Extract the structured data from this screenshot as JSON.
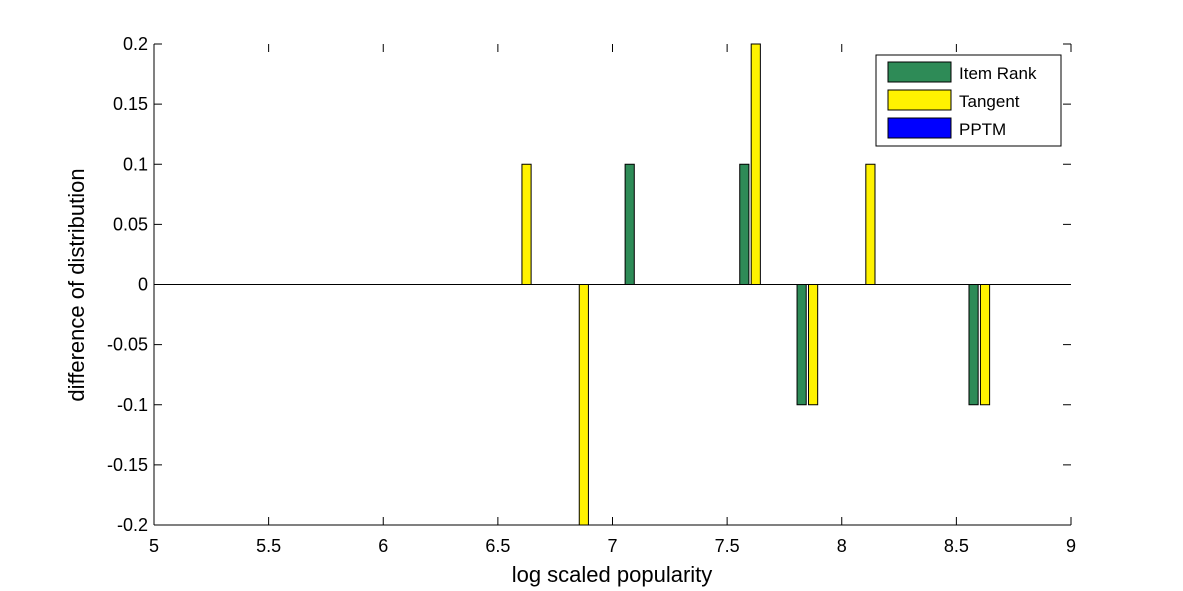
{
  "chart_data": {
    "type": "bar",
    "title": "",
    "xlabel": "log scaled popularity",
    "ylabel": "difference of distribution",
    "xlim": [
      5,
      9
    ],
    "ylim": [
      -0.2,
      0.2
    ],
    "xticks": [
      "5",
      "5.5",
      "6",
      "6.5",
      "7",
      "7.5",
      "8",
      "8.5",
      "9"
    ],
    "yticks": [
      "-0.2",
      "-0.15",
      "-0.1",
      "-0.05",
      "0",
      "0.05",
      "0.1",
      "0.15",
      "0.2"
    ],
    "bar_width": 0.04,
    "grid": false,
    "legend_position": "top-right",
    "series": [
      {
        "name": "Item Rank",
        "color": "#2E8B57",
        "points": [
          {
            "x": 7.075,
            "y": 0.1
          },
          {
            "x": 7.575,
            "y": 0.1
          },
          {
            "x": 7.825,
            "y": -0.1
          },
          {
            "x": 8.575,
            "y": -0.1
          }
        ]
      },
      {
        "name": "Tangent",
        "color": "#FFF200",
        "points": [
          {
            "x": 6.625,
            "y": 0.1
          },
          {
            "x": 6.875,
            "y": -0.2
          },
          {
            "x": 7.625,
            "y": 0.2
          },
          {
            "x": 7.875,
            "y": -0.1
          },
          {
            "x": 8.125,
            "y": 0.1
          },
          {
            "x": 8.625,
            "y": -0.1
          }
        ]
      },
      {
        "name": "PPTM",
        "color": "#0000FF",
        "points": []
      }
    ]
  }
}
